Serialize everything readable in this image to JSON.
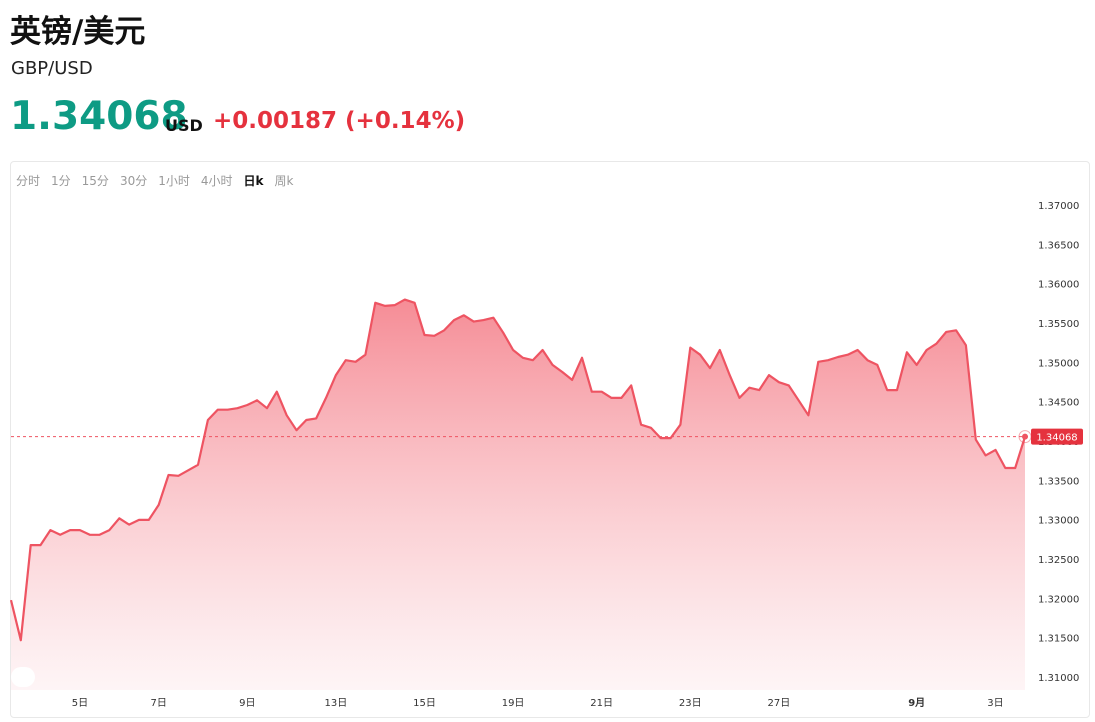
{
  "header": {
    "title": "英镑/美元",
    "symbol": "GBP/USD",
    "price": "1.34068",
    "currency": "USD",
    "change": "+0.00187 (+0.14%)"
  },
  "tabs": [
    "分时",
    "1分",
    "15分",
    "30分",
    "1小时",
    "4小时",
    "日k",
    "周k"
  ],
  "active_tab": 6,
  "chart_data": {
    "type": "area",
    "color": "#ee5462",
    "last_price": 1.34068,
    "ylim": [
      1.31,
      1.37
    ],
    "yticks": [
      {
        "value": 1.31,
        "label": "1.31000"
      },
      {
        "value": 1.315,
        "label": "1.31500"
      },
      {
        "value": 1.32,
        "label": "1.32000"
      },
      {
        "value": 1.325,
        "label": "1.32500"
      },
      {
        "value": 1.33,
        "label": "1.33000"
      },
      {
        "value": 1.335,
        "label": "1.33500"
      },
      {
        "value": 1.34,
        "label": "1.34000"
      },
      {
        "value": 1.345,
        "label": "1.34500"
      },
      {
        "value": 1.35,
        "label": "1.35000"
      },
      {
        "value": 1.355,
        "label": "1.35500"
      },
      {
        "value": 1.36,
        "label": "1.36000"
      },
      {
        "value": 1.365,
        "label": "1.36500"
      },
      {
        "value": 1.37,
        "label": "1.37000"
      }
    ],
    "x": [
      null,
      null,
      null,
      null,
      null,
      null,
      null,
      "5日",
      null,
      null,
      null,
      null,
      null,
      null,
      null,
      "7日",
      null,
      null,
      null,
      null,
      null,
      null,
      null,
      null,
      "9日",
      null,
      null,
      null,
      null,
      null,
      null,
      null,
      null,
      "13日",
      null,
      null,
      null,
      null,
      null,
      null,
      null,
      null,
      "15日",
      null,
      null,
      null,
      null,
      null,
      null,
      null,
      null,
      "19日",
      null,
      null,
      null,
      null,
      null,
      null,
      null,
      null,
      "21日",
      null,
      null,
      null,
      null,
      null,
      null,
      null,
      null,
      "23日",
      null,
      null,
      null,
      null,
      null,
      null,
      null,
      null,
      "27日",
      null,
      null,
      null,
      null,
      null,
      null,
      null,
      null,
      null,
      null,
      null,
      null,
      null,
      "9月",
      null,
      null,
      null,
      null,
      null,
      null,
      null,
      "3日",
      null,
      null,
      null
    ],
    "values": [
      1.3199,
      1.3148,
      1.3269,
      1.3269,
      1.3288,
      1.3282,
      1.3288,
      1.3288,
      1.3282,
      1.3282,
      1.3288,
      1.3303,
      1.3295,
      1.3301,
      1.3301,
      1.332,
      1.3358,
      1.3357,
      1.3364,
      1.3371,
      1.3428,
      1.3441,
      1.3441,
      1.3443,
      1.3447,
      1.3453,
      1.3443,
      1.3464,
      1.3434,
      1.3415,
      1.3428,
      1.343,
      1.3456,
      1.3485,
      1.3504,
      1.3502,
      1.3511,
      1.3577,
      1.3573,
      1.3574,
      1.3581,
      1.3577,
      1.3536,
      1.3535,
      1.3542,
      1.3555,
      1.3561,
      1.3553,
      1.3555,
      1.3558,
      1.3539,
      1.3517,
      1.3507,
      1.3504,
      1.3517,
      1.3498,
      1.3489,
      1.3479,
      1.3507,
      1.3464,
      1.3464,
      1.3456,
      1.3456,
      1.3472,
      1.3422,
      1.3418,
      1.3405,
      1.3405,
      1.3422,
      1.352,
      1.3511,
      1.3494,
      1.3517,
      1.3485,
      1.3456,
      1.3469,
      1.3466,
      1.3485,
      1.3476,
      1.3472,
      1.3453,
      1.3434,
      1.3502,
      1.3504,
      1.3508,
      1.3511,
      1.3517,
      1.3504,
      1.3498,
      1.3466,
      1.3466,
      1.3514,
      1.3498,
      1.3517,
      1.3525,
      1.354,
      1.3542,
      1.3523,
      1.3403,
      1.3383,
      1.339,
      1.3367,
      1.3367,
      1.34068
    ]
  }
}
